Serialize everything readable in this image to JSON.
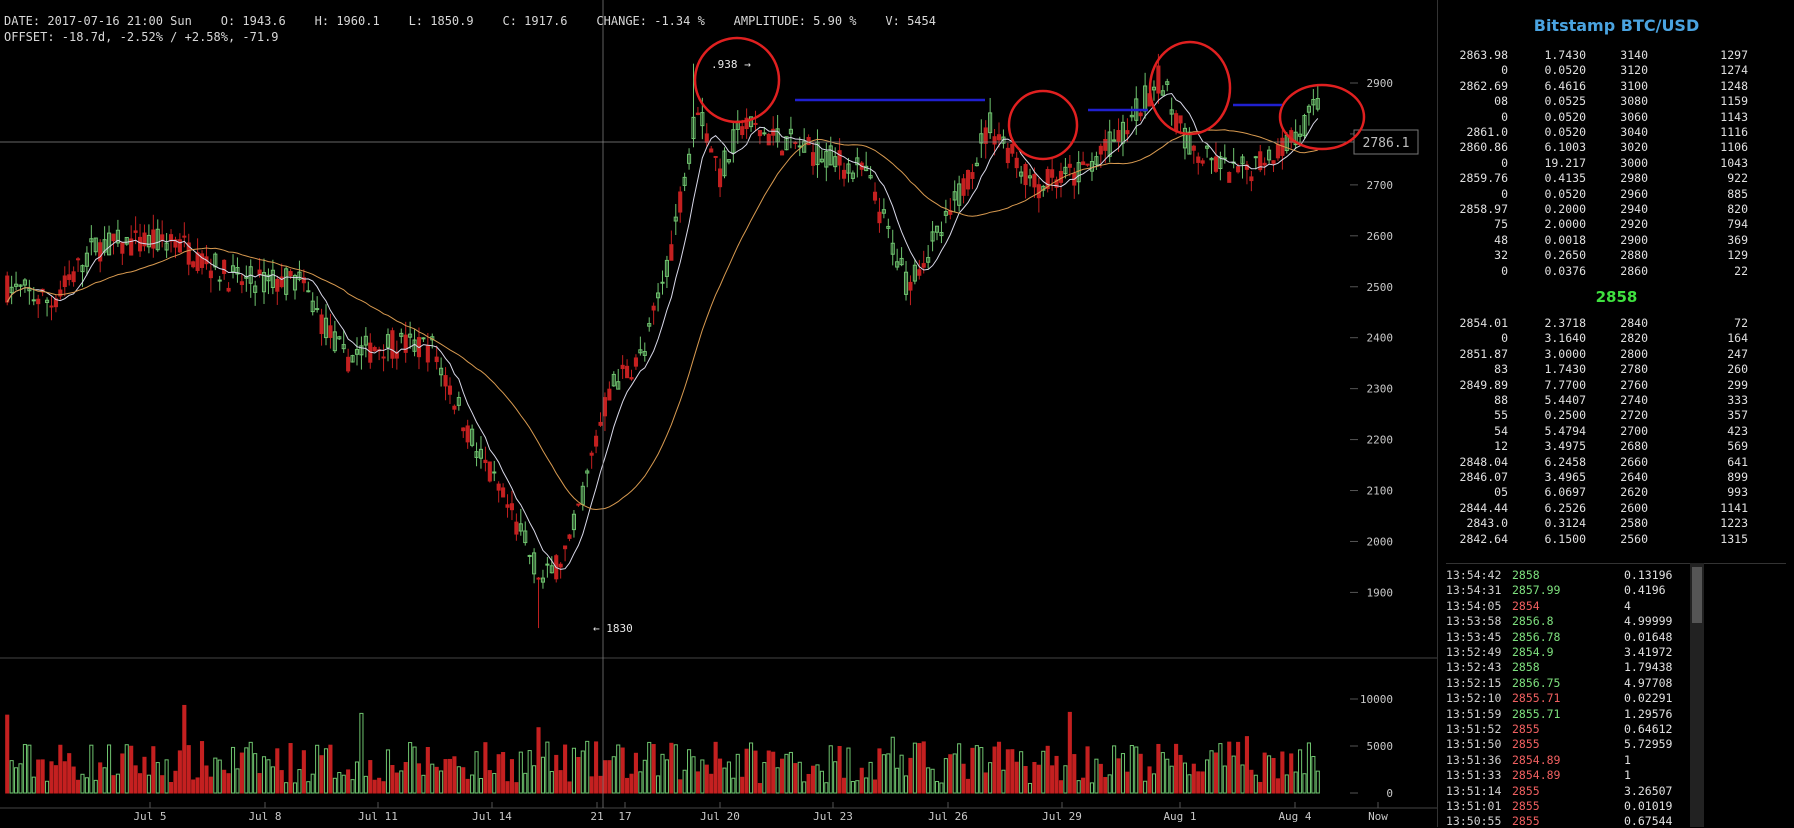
{
  "header": {
    "line1": "DATE: 2017-07-16 21:00 Sun    O: 1943.6    H: 1960.1    L: 1850.9    C: 1917.6    CHANGE: -1.34 %    AMPLITUDE: 5.90 %    V: 5454",
    "line2": "OFFSET: -18.7d, -2.52% / +2.58%, -71.9"
  },
  "chart": {
    "price_ticks": [
      "2900",
      "2800",
      "2700",
      "2600",
      "2500",
      "2400",
      "2300",
      "2200",
      "2100",
      "2000",
      "1900"
    ],
    "volume_ticks": [
      "10000",
      "5000",
      "0"
    ],
    "date_labels": [
      "Jul 5",
      "Jul 8",
      "Jul 11",
      "Jul 14",
      "21",
      "17",
      "Jul 20",
      "Jul 23",
      "Jul 26",
      "Jul 29",
      "Aug 1",
      "Aug 4",
      "Now"
    ],
    "price_marker": "2786.1",
    "high_annotation": ".938 →",
    "low_annotation": "← 1830",
    "colors": {
      "up": "#6fc46f",
      "down": "#c42020",
      "ma_fast": "#d8d8e8",
      "ma_slow": "#d89a50",
      "annotation": "#e02020",
      "resistance": "#2020d0"
    }
  },
  "orderbook": {
    "title": "Bitstamp BTC/USD",
    "asks": [
      [
        "2863.98",
        "1.7430",
        "3140",
        "1297"
      ],
      [
        "0",
        "0.0520",
        "3120",
        "1274"
      ],
      [
        "2862.69",
        "6.4616",
        "3100",
        "1248"
      ],
      [
        "08",
        "0.0525",
        "3080",
        "1159"
      ],
      [
        "0",
        "0.0520",
        "3060",
        "1143"
      ],
      [
        "2861.0",
        "0.0520",
        "3040",
        "1116"
      ],
      [
        "2860.86",
        "6.1003",
        "3020",
        "1106"
      ],
      [
        "0",
        "19.217",
        "3000",
        "1043"
      ],
      [
        "2859.76",
        "0.4135",
        "2980",
        "922"
      ],
      [
        "0",
        "0.0520",
        "2960",
        "885"
      ],
      [
        "2858.97",
        "0.2000",
        "2940",
        "820"
      ],
      [
        "75",
        "2.0000",
        "2920",
        "794"
      ],
      [
        "48",
        "0.0018",
        "2900",
        "369"
      ],
      [
        "32",
        "0.2650",
        "2880",
        "129"
      ],
      [
        "0",
        "0.0376",
        "2860",
        "22"
      ]
    ],
    "mid_price": "2858",
    "bids": [
      [
        "2854.01",
        "2.3718",
        "2840",
        "72"
      ],
      [
        "0",
        "3.1640",
        "2820",
        "164"
      ],
      [
        "2851.87",
        "3.0000",
        "2800",
        "247"
      ],
      [
        "83",
        "1.7430",
        "2780",
        "260"
      ],
      [
        "2849.89",
        "7.7700",
        "2760",
        "299"
      ],
      [
        "88",
        "5.4407",
        "2740",
        "333"
      ],
      [
        "55",
        "0.2500",
        "2720",
        "357"
      ],
      [
        "54",
        "5.4794",
        "2700",
        "423"
      ],
      [
        "12",
        "3.4975",
        "2680",
        "569"
      ],
      [
        "2848.04",
        "6.2458",
        "2660",
        "641"
      ],
      [
        "2846.07",
        "3.4965",
        "2640",
        "899"
      ],
      [
        "05",
        "6.0697",
        "2620",
        "993"
      ],
      [
        "2844.44",
        "6.2526",
        "2600",
        "1141"
      ],
      [
        "2843.0",
        "0.3124",
        "2580",
        "1223"
      ],
      [
        "2842.64",
        "6.1500",
        "2560",
        "1315"
      ]
    ]
  },
  "trades": [
    [
      "13:54:42",
      "2858",
      "0.13196",
      "up"
    ],
    [
      "13:54:31",
      "2857.99",
      "0.4196",
      "up"
    ],
    [
      "13:54:05",
      "2854",
      "4",
      "dn"
    ],
    [
      "13:53:58",
      "2856.8",
      "4.99999",
      "up"
    ],
    [
      "13:53:45",
      "2856.78",
      "0.01648",
      "up"
    ],
    [
      "13:52:49",
      "2854.9",
      "3.41972",
      "up"
    ],
    [
      "13:52:43",
      "2858",
      "1.79438",
      "up"
    ],
    [
      "13:52:15",
      "2856.75",
      "4.97708",
      "up"
    ],
    [
      "13:52:10",
      "2855.71",
      "0.02291",
      "dn"
    ],
    [
      "13:51:59",
      "2855.71",
      "1.29576",
      "up"
    ],
    [
      "13:51:52",
      "2855",
      "0.64612",
      "dn"
    ],
    [
      "13:51:50",
      "2855",
      "5.72959",
      "dn"
    ],
    [
      "13:51:36",
      "2854.89",
      "1",
      "dn"
    ],
    [
      "13:51:33",
      "2854.89",
      "1",
      "dn"
    ],
    [
      "13:51:14",
      "2855",
      "3.26507",
      "dn"
    ],
    [
      "13:51:01",
      "2855",
      "0.01019",
      "dn"
    ],
    [
      "13:50:55",
      "2855",
      "0.67544",
      "dn"
    ]
  ]
}
